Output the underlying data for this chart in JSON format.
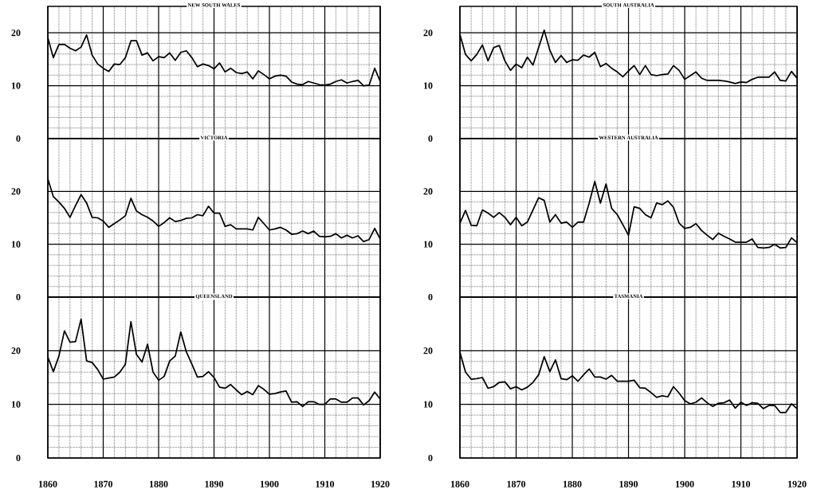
{
  "chart_data": [
    {
      "type": "line",
      "title": "NEW SOUTH WALES",
      "x": [
        1860,
        1861,
        1862,
        1863,
        1864,
        1865,
        1866,
        1867,
        1868,
        1869,
        1870,
        1871,
        1872,
        1873,
        1874,
        1875,
        1876,
        1877,
        1878,
        1879,
        1880,
        1881,
        1882,
        1883,
        1884,
        1885,
        1886,
        1887,
        1888,
        1889,
        1890,
        1891,
        1892,
        1893,
        1894,
        1895,
        1896,
        1897,
        1898,
        1899,
        1900,
        1901,
        1902,
        1903,
        1904,
        1905,
        1906,
        1907,
        1908,
        1909,
        1910,
        1911,
        1912,
        1913,
        1914,
        1915,
        1916,
        1917,
        1918,
        1919,
        1920
      ],
      "values": [
        19.1,
        15.3,
        17.8,
        17.8,
        17.1,
        16.6,
        17.3,
        19.6,
        15.8,
        14.1,
        13.3,
        12.7,
        14.1,
        14.0,
        15.3,
        18.5,
        18.5,
        15.8,
        16.2,
        14.7,
        15.5,
        15.3,
        16.2,
        14.8,
        16.3,
        16.6,
        15.3,
        13.6,
        14.1,
        13.8,
        13.2,
        14.3,
        12.6,
        13.3,
        12.5,
        12.3,
        12.6,
        11.3,
        12.8,
        12.1,
        11.3,
        11.8,
        12.0,
        11.8,
        10.7,
        10.3,
        10.2,
        10.8,
        10.5,
        10.2,
        10.1,
        10.3,
        10.8,
        11.1,
        10.5,
        10.8,
        11.0,
        10.0,
        10.1,
        13.3,
        10.8
      ],
      "color": "#000000",
      "xlim": [
        1860,
        1920
      ],
      "ylim": [
        0,
        25
      ],
      "xticks": [
        1860,
        1870,
        1880,
        1890,
        1900,
        1910,
        1920
      ],
      "yticks": [
        0,
        10,
        20
      ],
      "grid": true,
      "tick_labels": "y"
    },
    {
      "type": "line",
      "title": "SOUTH AUSTRALIA",
      "x": [
        1860,
        1861,
        1862,
        1863,
        1864,
        1865,
        1866,
        1867,
        1868,
        1869,
        1870,
        1871,
        1872,
        1873,
        1874,
        1875,
        1876,
        1877,
        1878,
        1879,
        1880,
        1881,
        1882,
        1883,
        1884,
        1885,
        1886,
        1887,
        1888,
        1889,
        1890,
        1891,
        1892,
        1893,
        1894,
        1895,
        1896,
        1897,
        1898,
        1899,
        1900,
        1901,
        1902,
        1903,
        1904,
        1905,
        1906,
        1907,
        1908,
        1909,
        1910,
        1911,
        1912,
        1913,
        1914,
        1915,
        1916,
        1917,
        1918,
        1919,
        1920
      ],
      "values": [
        19.7,
        15.9,
        14.7,
        15.9,
        17.7,
        14.7,
        17.2,
        17.6,
        14.7,
        12.9,
        14.1,
        13.4,
        15.4,
        13.9,
        17.2,
        20.5,
        16.7,
        14.4,
        15.7,
        14.4,
        14.9,
        14.8,
        15.8,
        15.4,
        16.3,
        13.6,
        14.2,
        13.3,
        12.6,
        11.7,
        12.8,
        13.8,
        12.1,
        13.8,
        12.1,
        11.9,
        12.1,
        12.2,
        13.8,
        12.9,
        11.2,
        11.9,
        12.6,
        11.4,
        11.0,
        11.0,
        11.0,
        10.9,
        10.7,
        10.4,
        10.7,
        10.6,
        11.2,
        11.6,
        11.6,
        11.6,
        12.6,
        11.0,
        10.9,
        12.7,
        11.4
      ],
      "color": "#000000",
      "xlim": [
        1860,
        1920
      ],
      "ylim": [
        0,
        25
      ],
      "xticks": [
        1860,
        1870,
        1880,
        1890,
        1900,
        1910,
        1920
      ],
      "yticks": [
        0,
        10,
        20
      ],
      "grid": true,
      "tick_labels": "y"
    },
    {
      "type": "line",
      "title": "VICTORIA",
      "x": [
        1860,
        1861,
        1862,
        1863,
        1864,
        1865,
        1866,
        1867,
        1868,
        1869,
        1870,
        1871,
        1872,
        1873,
        1874,
        1875,
        1876,
        1877,
        1878,
        1879,
        1880,
        1881,
        1882,
        1883,
        1884,
        1885,
        1886,
        1887,
        1888,
        1889,
        1890,
        1891,
        1892,
        1893,
        1894,
        1895,
        1896,
        1897,
        1898,
        1899,
        1900,
        1901,
        1902,
        1903,
        1904,
        1905,
        1906,
        1907,
        1908,
        1909,
        1910,
        1911,
        1912,
        1913,
        1914,
        1915,
        1916,
        1917,
        1918,
        1919,
        1920
      ],
      "values": [
        22.4,
        19.0,
        18.0,
        16.8,
        15.1,
        17.3,
        19.4,
        17.8,
        15.1,
        15.0,
        14.4,
        13.2,
        13.9,
        14.6,
        15.4,
        18.7,
        16.3,
        15.6,
        15.1,
        14.4,
        13.4,
        14.1,
        15.0,
        14.3,
        14.5,
        14.9,
        15.0,
        15.6,
        15.4,
        17.2,
        15.9,
        15.9,
        13.4,
        13.7,
        12.9,
        12.9,
        12.9,
        12.7,
        15.1,
        13.9,
        12.7,
        12.9,
        13.2,
        12.7,
        11.9,
        12.0,
        12.5,
        12.0,
        12.5,
        11.5,
        11.4,
        11.5,
        12.0,
        11.2,
        11.7,
        11.2,
        11.6,
        10.5,
        10.9,
        13.0,
        11.0
      ],
      "color": "#000000",
      "xlim": [
        1860,
        1920
      ],
      "ylim": [
        0,
        30
      ],
      "xticks": [
        1860,
        1870,
        1880,
        1890,
        1900,
        1910,
        1920
      ],
      "yticks": [
        0,
        10,
        20
      ],
      "grid": true,
      "tick_labels": "y"
    },
    {
      "type": "line",
      "title": "WESTERN AUSTRALIA",
      "x": [
        1860,
        1861,
        1862,
        1863,
        1864,
        1865,
        1866,
        1867,
        1868,
        1869,
        1870,
        1871,
        1872,
        1873,
        1874,
        1875,
        1876,
        1877,
        1878,
        1879,
        1880,
        1881,
        1882,
        1883,
        1884,
        1885,
        1886,
        1887,
        1888,
        1889,
        1890,
        1891,
        1892,
        1893,
        1894,
        1895,
        1896,
        1897,
        1898,
        1899,
        1900,
        1901,
        1902,
        1903,
        1904,
        1905,
        1906,
        1907,
        1908,
        1909,
        1910,
        1911,
        1912,
        1913,
        1914,
        1915,
        1916,
        1917,
        1918,
        1919,
        1920
      ],
      "values": [
        14.0,
        16.4,
        13.6,
        13.5,
        16.5,
        15.9,
        15.1,
        16.0,
        15.1,
        13.7,
        15.1,
        13.5,
        14.2,
        16.5,
        18.8,
        18.3,
        14.2,
        15.6,
        14.0,
        14.2,
        13.2,
        14.2,
        14.2,
        17.8,
        21.9,
        17.8,
        21.4,
        16.8,
        15.6,
        13.7,
        11.7,
        17.1,
        16.8,
        15.6,
        15.0,
        17.8,
        17.5,
        18.2,
        17.0,
        14.0,
        13.0,
        13.2,
        13.9,
        12.6,
        11.7,
        10.9,
        12.1,
        11.5,
        11.0,
        10.4,
        10.4,
        10.4,
        11.0,
        9.4,
        9.3,
        9.4,
        10.0,
        9.3,
        9.4,
        11.2,
        10.3
      ],
      "color": "#000000",
      "xlim": [
        1860,
        1920
      ],
      "ylim": [
        0,
        30
      ],
      "xticks": [
        1860,
        1870,
        1880,
        1890,
        1900,
        1910,
        1920
      ],
      "yticks": [
        0,
        10,
        20
      ],
      "grid": true,
      "tick_labels": "y"
    },
    {
      "type": "line",
      "title": "QUEENSLAND",
      "x": [
        1860,
        1861,
        1862,
        1863,
        1864,
        1865,
        1866,
        1867,
        1868,
        1869,
        1870,
        1871,
        1872,
        1873,
        1874,
        1875,
        1876,
        1877,
        1878,
        1879,
        1880,
        1881,
        1882,
        1883,
        1884,
        1885,
        1886,
        1887,
        1888,
        1889,
        1890,
        1891,
        1892,
        1893,
        1894,
        1895,
        1896,
        1897,
        1898,
        1899,
        1900,
        1901,
        1902,
        1903,
        1904,
        1905,
        1906,
        1907,
        1908,
        1909,
        1910,
        1911,
        1912,
        1913,
        1914,
        1915,
        1916,
        1917,
        1918,
        1919,
        1920
      ],
      "values": [
        18.8,
        16.1,
        19.0,
        23.7,
        21.6,
        21.7,
        25.9,
        18.1,
        17.8,
        16.5,
        14.7,
        14.9,
        15.1,
        16.0,
        17.5,
        25.4,
        19.3,
        17.9,
        21.2,
        16.0,
        14.5,
        15.2,
        18.1,
        19.0,
        23.5,
        19.8,
        17.5,
        15.1,
        15.2,
        16.1,
        15.0,
        13.2,
        13.0,
        13.7,
        12.7,
        11.8,
        12.4,
        11.8,
        13.5,
        12.8,
        11.9,
        12.0,
        12.3,
        12.5,
        10.4,
        10.5,
        9.6,
        10.5,
        10.5,
        10.0,
        10.0,
        11.0,
        11.0,
        10.4,
        10.4,
        11.2,
        11.2,
        9.9,
        10.7,
        12.3,
        11.0
      ],
      "color": "#000000",
      "xlim": [
        1860,
        1920
      ],
      "ylim": [
        0,
        30
      ],
      "xticks": [
        1860,
        1870,
        1880,
        1890,
        1900,
        1910,
        1920
      ],
      "yticks": [
        0,
        10,
        20
      ],
      "grid": true
    },
    {
      "type": "line",
      "title": "TASMANIA",
      "x": [
        1860,
        1861,
        1862,
        1863,
        1864,
        1865,
        1866,
        1867,
        1868,
        1869,
        1870,
        1871,
        1872,
        1873,
        1874,
        1875,
        1876,
        1877,
        1878,
        1879,
        1880,
        1881,
        1882,
        1883,
        1884,
        1885,
        1886,
        1887,
        1888,
        1889,
        1890,
        1891,
        1892,
        1893,
        1894,
        1895,
        1896,
        1897,
        1898,
        1899,
        1900,
        1901,
        1902,
        1903,
        1904,
        1905,
        1906,
        1907,
        1908,
        1909,
        1910,
        1911,
        1912,
        1913,
        1914,
        1915,
        1916,
        1917,
        1918,
        1919,
        1920
      ],
      "values": [
        19.7,
        16.0,
        14.7,
        14.8,
        15.0,
        13.0,
        13.3,
        14.1,
        14.2,
        12.9,
        13.3,
        12.7,
        13.2,
        14.1,
        15.5,
        18.9,
        16.1,
        18.3,
        14.8,
        14.6,
        15.3,
        14.3,
        15.5,
        16.6,
        15.1,
        15.1,
        14.7,
        15.4,
        14.3,
        14.3,
        14.3,
        14.5,
        13.1,
        13.0,
        12.2,
        11.3,
        11.6,
        11.4,
        13.3,
        12.1,
        10.7,
        10.1,
        10.4,
        11.2,
        10.3,
        9.6,
        10.2,
        10.3,
        10.8,
        9.3,
        10.4,
        9.8,
        10.3,
        10.2,
        9.2,
        9.8,
        9.8,
        8.5,
        8.5,
        10.1,
        9.2
      ],
      "color": "#000000",
      "xlim": [
        1860,
        1920
      ],
      "ylim": [
        0,
        30
      ],
      "xticks": [
        1860,
        1870,
        1880,
        1890,
        1900,
        1910,
        1920
      ],
      "yticks": [
        0,
        10,
        20
      ],
      "grid": true
    }
  ]
}
